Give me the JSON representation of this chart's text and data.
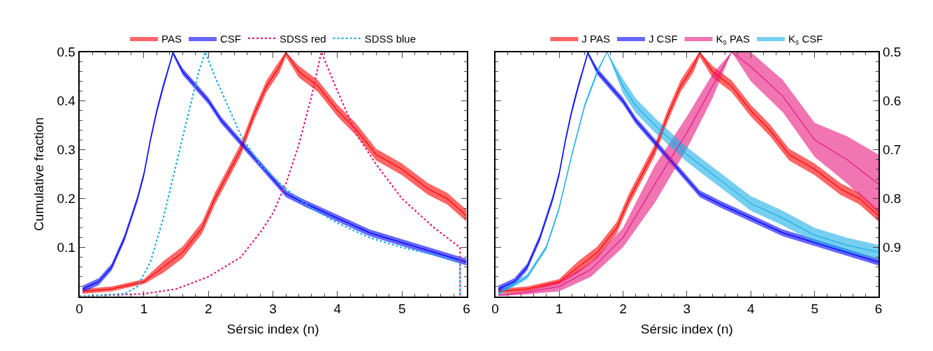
{
  "chart_data": [
    {
      "type": "line",
      "xlabel": "Sérsic index (n)",
      "ylabel": "Cumulative fraction",
      "xlim": [
        0,
        6
      ],
      "xticks": [
        0,
        1,
        2,
        3,
        4,
        5,
        6
      ],
      "ylim": [
        0,
        0.5
      ],
      "yticks": [
        0.1,
        0.2,
        0.3,
        0.4,
        0.5
      ],
      "legend": "top",
      "series": [
        {
          "name": "PAS",
          "color": "#ff0000",
          "x": [
            0.05,
            0.5,
            1.0,
            1.3,
            1.6,
            1.9,
            2.1,
            2.3,
            2.5,
            2.7,
            2.9,
            3.1,
            3.2,
            3.4,
            3.7,
            4.0,
            4.3,
            4.6,
            5.0,
            5.4,
            5.7,
            6.0
          ],
          "values": [
            0.01,
            0.015,
            0.03,
            0.06,
            0.09,
            0.14,
            0.2,
            0.25,
            0.3,
            0.37,
            0.43,
            0.47,
            0.5,
            0.46,
            0.43,
            0.38,
            0.34,
            0.29,
            0.26,
            0.22,
            0.2,
            0.165
          ],
          "lower": [
            0.005,
            0.01,
            0.025,
            0.048,
            0.078,
            0.128,
            0.188,
            0.238,
            0.288,
            0.358,
            0.418,
            0.458,
            0.49,
            0.448,
            0.418,
            0.368,
            0.328,
            0.278,
            0.248,
            0.208,
            0.188,
            0.153
          ],
          "upper": [
            0.015,
            0.02,
            0.035,
            0.072,
            0.102,
            0.152,
            0.212,
            0.262,
            0.312,
            0.382,
            0.442,
            0.482,
            0.5,
            0.472,
            0.442,
            0.392,
            0.352,
            0.302,
            0.272,
            0.232,
            0.212,
            0.177
          ]
        },
        {
          "name": "CSF",
          "color": "#0000ff",
          "x": [
            0.05,
            0.3,
            0.5,
            0.7,
            0.9,
            1.0,
            1.1,
            1.2,
            1.3,
            1.45,
            1.6,
            1.8,
            2.0,
            2.2,
            2.4,
            2.6,
            2.8,
            3.0,
            3.2,
            3.5,
            4.0,
            4.5,
            5.0,
            5.5,
            6.0
          ],
          "values": [
            0.015,
            0.03,
            0.06,
            0.12,
            0.2,
            0.25,
            0.32,
            0.38,
            0.43,
            0.5,
            0.46,
            0.43,
            0.4,
            0.36,
            0.33,
            0.3,
            0.27,
            0.24,
            0.21,
            0.19,
            0.16,
            0.13,
            0.11,
            0.09,
            0.07
          ],
          "lower": [
            0.008,
            0.023,
            0.053,
            0.113,
            0.193,
            0.243,
            0.313,
            0.373,
            0.423,
            0.493,
            0.453,
            0.423,
            0.393,
            0.353,
            0.323,
            0.293,
            0.263,
            0.233,
            0.203,
            0.183,
            0.153,
            0.123,
            0.103,
            0.083,
            0.063
          ],
          "upper": [
            0.022,
            0.037,
            0.067,
            0.127,
            0.207,
            0.257,
            0.327,
            0.387,
            0.437,
            0.5,
            0.467,
            0.437,
            0.407,
            0.367,
            0.337,
            0.307,
            0.277,
            0.247,
            0.217,
            0.197,
            0.167,
            0.137,
            0.117,
            0.097,
            0.077
          ]
        },
        {
          "name": "SDSS red",
          "line_style": "dotted",
          "color": "#e6197f",
          "x": [
            0,
            1.0,
            1.5,
            2.0,
            2.5,
            2.8,
            3.0,
            3.2,
            3.4,
            3.6,
            3.75,
            4.0,
            4.3,
            4.6,
            5.0,
            5.5,
            5.9,
            5.9
          ],
          "values": [
            0,
            0.005,
            0.015,
            0.04,
            0.08,
            0.13,
            0.17,
            0.23,
            0.31,
            0.41,
            0.5,
            0.42,
            0.33,
            0.27,
            0.2,
            0.14,
            0.1,
            0
          ]
        },
        {
          "name": "SDSS blue",
          "line_style": "dotted",
          "color": "#1aafe6",
          "x": [
            0,
            0.7,
            0.9,
            1.1,
            1.3,
            1.5,
            1.7,
            1.85,
            1.95,
            2.1,
            2.3,
            2.5,
            2.8,
            3.2,
            3.6,
            4.0,
            4.5,
            5.0,
            5.5,
            5.9,
            5.9
          ],
          "values": [
            0,
            0.005,
            0.02,
            0.07,
            0.16,
            0.27,
            0.38,
            0.46,
            0.5,
            0.45,
            0.39,
            0.33,
            0.27,
            0.22,
            0.18,
            0.15,
            0.12,
            0.1,
            0.085,
            0.07,
            0
          ]
        }
      ]
    },
    {
      "type": "line",
      "xlabel": "Sérsic index (n)",
      "xlim": [
        0,
        6
      ],
      "xticks": [
        0,
        1,
        2,
        3,
        4,
        5,
        6
      ],
      "y2lim": [
        1.0,
        0.5
      ],
      "y2ticks": [
        0.5,
        0.6,
        0.7,
        0.8,
        0.9
      ],
      "tick_labels": [
        "x",
        "y2"
      ],
      "legend": "top",
      "series": [
        {
          "name": "J PAS",
          "axis": "y2",
          "color": "#ff0000",
          "x": [
            0.05,
            0.5,
            1.0,
            1.3,
            1.6,
            1.9,
            2.1,
            2.3,
            2.5,
            2.7,
            2.9,
            3.1,
            3.2,
            3.4,
            3.7,
            4.0,
            4.3,
            4.6,
            5.0,
            5.4,
            5.7,
            6.0
          ],
          "values": [
            0.99,
            0.985,
            0.97,
            0.94,
            0.91,
            0.86,
            0.8,
            0.75,
            0.7,
            0.63,
            0.57,
            0.53,
            0.5,
            0.54,
            0.57,
            0.62,
            0.66,
            0.71,
            0.74,
            0.78,
            0.8,
            0.835
          ],
          "lower": [
            0.985,
            0.98,
            0.965,
            0.928,
            0.898,
            0.848,
            0.788,
            0.738,
            0.688,
            0.618,
            0.558,
            0.518,
            0.5,
            0.528,
            0.558,
            0.608,
            0.648,
            0.698,
            0.728,
            0.768,
            0.788,
            0.823
          ],
          "upper": [
            0.995,
            0.99,
            0.975,
            0.952,
            0.922,
            0.872,
            0.812,
            0.762,
            0.712,
            0.642,
            0.582,
            0.542,
            0.51,
            0.552,
            0.582,
            0.632,
            0.672,
            0.722,
            0.752,
            0.792,
            0.812,
            0.847
          ]
        },
        {
          "name": "J CSF",
          "axis": "y2",
          "color": "#0000ff",
          "x": [
            0.05,
            0.3,
            0.5,
            0.7,
            0.9,
            1.0,
            1.1,
            1.2,
            1.3,
            1.45,
            1.6,
            1.8,
            2.0,
            2.2,
            2.4,
            2.6,
            2.8,
            3.0,
            3.2,
            3.5,
            4.0,
            4.5,
            5.0,
            5.5,
            6.0
          ],
          "values": [
            0.985,
            0.97,
            0.94,
            0.88,
            0.8,
            0.75,
            0.68,
            0.62,
            0.57,
            0.5,
            0.54,
            0.57,
            0.6,
            0.64,
            0.67,
            0.7,
            0.73,
            0.76,
            0.79,
            0.81,
            0.84,
            0.87,
            0.89,
            0.91,
            0.93
          ],
          "lower": [
            0.978,
            0.963,
            0.933,
            0.873,
            0.793,
            0.743,
            0.673,
            0.613,
            0.563,
            0.5,
            0.533,
            0.563,
            0.593,
            0.633,
            0.663,
            0.693,
            0.723,
            0.753,
            0.783,
            0.803,
            0.833,
            0.863,
            0.883,
            0.903,
            0.923
          ],
          "upper": [
            0.992,
            0.977,
            0.947,
            0.887,
            0.807,
            0.757,
            0.687,
            0.627,
            0.577,
            0.507,
            0.547,
            0.577,
            0.607,
            0.647,
            0.677,
            0.707,
            0.737,
            0.767,
            0.797,
            0.817,
            0.847,
            0.877,
            0.897,
            0.917,
            0.937
          ]
        },
        {
          "name": "K$_{s}$ PAS",
          "axis": "y2",
          "color": "#e6197f",
          "x": [
            0.05,
            0.5,
            1.0,
            1.5,
            2.0,
            2.5,
            3.0,
            3.4,
            3.7,
            4.0,
            4.5,
            5.0,
            5.5,
            6.0
          ],
          "values": [
            0.998,
            0.992,
            0.98,
            0.945,
            0.88,
            0.77,
            0.665,
            0.57,
            0.5,
            0.53,
            0.59,
            0.68,
            0.72,
            0.77
          ],
          "lower": [
            0.996,
            0.988,
            0.97,
            0.93,
            0.86,
            0.732,
            0.632,
            0.545,
            0.5,
            0.5,
            0.557,
            0.645,
            0.672,
            0.71
          ],
          "upper": [
            1.0,
            0.996,
            0.99,
            0.96,
            0.9,
            0.808,
            0.698,
            0.595,
            0.5,
            0.56,
            0.623,
            0.715,
            0.768,
            0.83
          ]
        },
        {
          "name": "K$_{s}$ CSF",
          "axis": "y2",
          "color": "#1aafe6",
          "x": [
            0.05,
            0.5,
            0.8,
            1.0,
            1.2,
            1.4,
            1.6,
            1.75,
            2.0,
            2.2,
            2.5,
            3.0,
            3.5,
            4.0,
            4.5,
            5.0,
            5.5,
            6.0
          ],
          "values": [
            0.995,
            0.96,
            0.9,
            0.82,
            0.71,
            0.61,
            0.54,
            0.5,
            0.57,
            0.61,
            0.65,
            0.71,
            0.76,
            0.81,
            0.84,
            0.875,
            0.895,
            0.91
          ],
          "lower": [
            0.99,
            0.955,
            0.895,
            0.815,
            0.705,
            0.605,
            0.535,
            0.5,
            0.555,
            0.595,
            0.635,
            0.695,
            0.745,
            0.795,
            0.825,
            0.86,
            0.88,
            0.895
          ],
          "upper": [
            0.998,
            0.965,
            0.905,
            0.825,
            0.715,
            0.615,
            0.545,
            0.5,
            0.585,
            0.625,
            0.665,
            0.725,
            0.775,
            0.825,
            0.855,
            0.89,
            0.91,
            0.925
          ]
        }
      ]
    }
  ]
}
